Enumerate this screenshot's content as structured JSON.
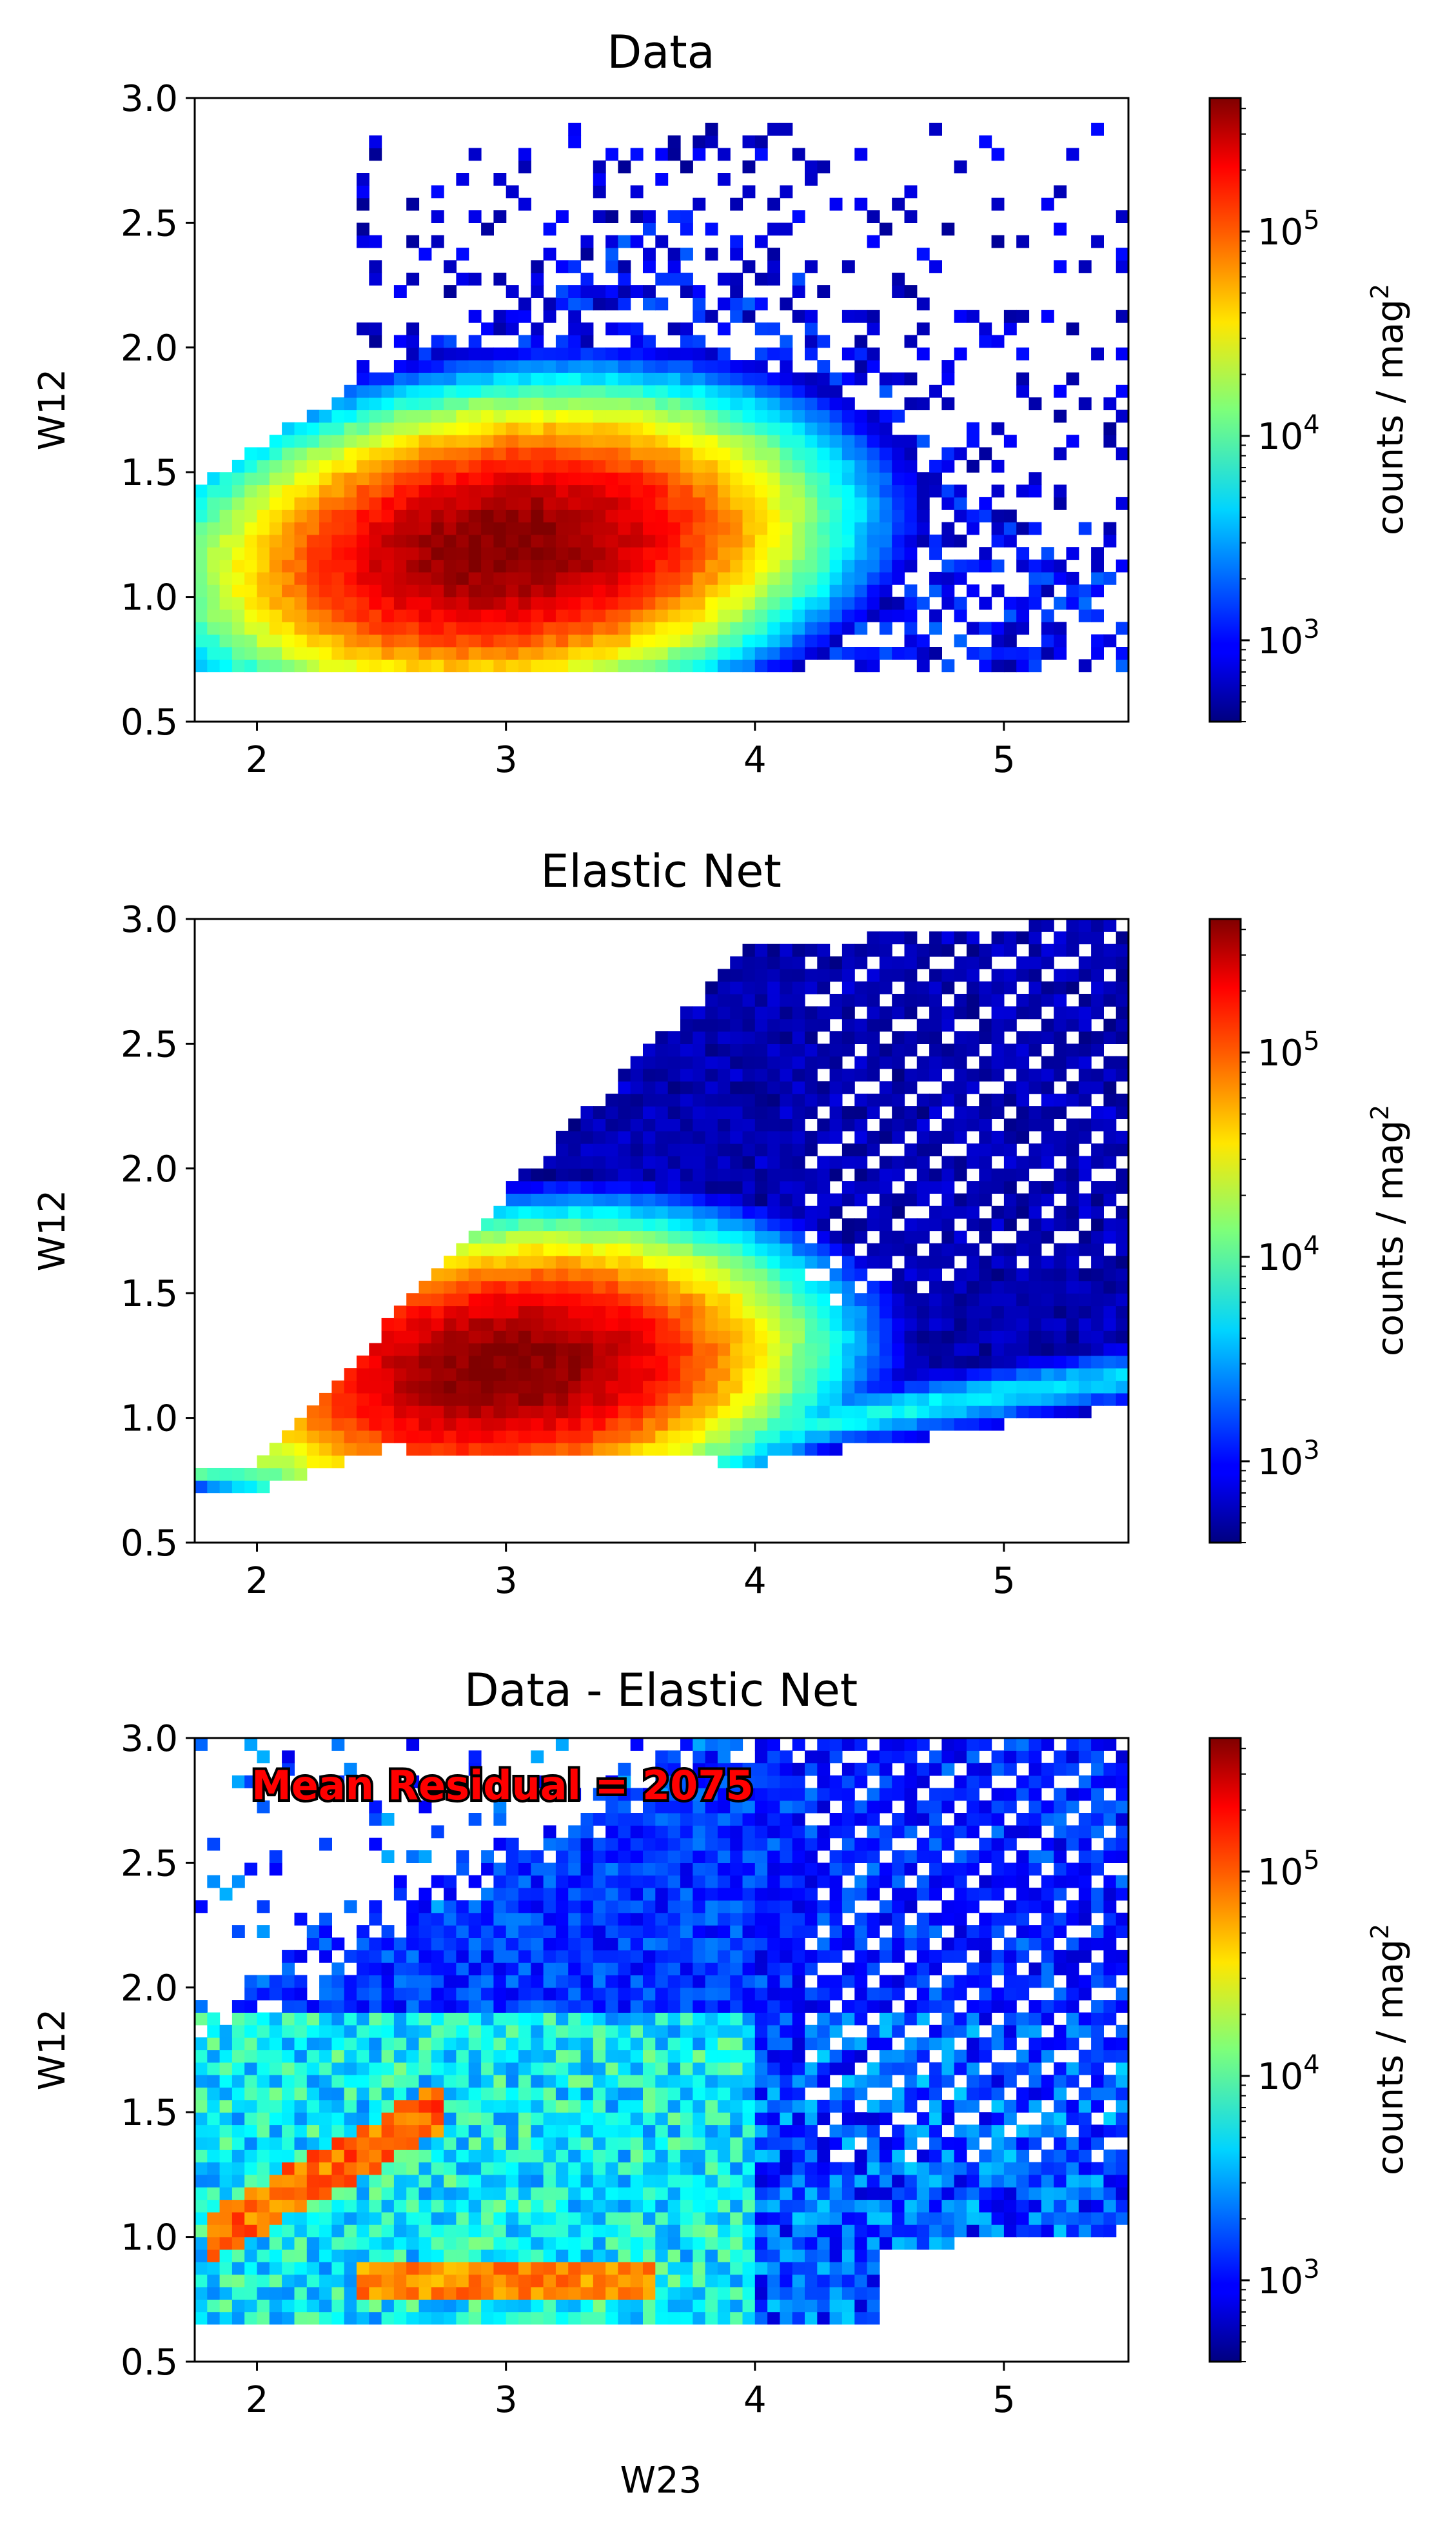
{
  "chart_data": [
    {
      "type": "heatmap",
      "title": "Data",
      "xlabel": "",
      "ylabel": "W12",
      "xlim": [
        1.75,
        5.5
      ],
      "ylim": [
        0.5,
        3.0
      ],
      "xticks": [
        "2",
        "3",
        "4",
        "5"
      ],
      "yticks": [
        "0.5",
        "1.0",
        "1.5",
        "2.0",
        "2.5",
        "3.0"
      ],
      "colorbar": {
        "label": "counts / mag",
        "label_superscript": "2",
        "scale": "log",
        "range": [
          400,
          450000
        ],
        "ticks": [
          "10",
          "10",
          "10"
        ],
        "tick_exponents": [
          "3",
          "4",
          "5"
        ],
        "colormap": "jet"
      },
      "annotation": "",
      "density": {
        "peak": [
          3.0,
          1.2
        ],
        "peak_value": 420000,
        "lower_edge_w12": 0.68,
        "upper_edge": [
          [
            1.75,
            1.45
          ],
          [
            3.0,
            2.2
          ],
          [
            3.8,
            2.6
          ],
          [
            4.5,
            2.0
          ],
          [
            5.0,
            1.3
          ]
        ],
        "scatter_tail": true
      }
    },
    {
      "type": "heatmap",
      "title": "Elastic Net",
      "xlabel": "",
      "ylabel": "W12",
      "xlim": [
        1.75,
        5.5
      ],
      "ylim": [
        0.5,
        3.0
      ],
      "xticks": [
        "2",
        "3",
        "4",
        "5"
      ],
      "yticks": [
        "0.5",
        "1.0",
        "1.5",
        "2.0",
        "2.5",
        "3.0"
      ],
      "colorbar": {
        "label": "counts / mag",
        "label_superscript": "2",
        "scale": "log",
        "range": [
          400,
          450000
        ],
        "ticks": [
          "10",
          "10",
          "10"
        ],
        "tick_exponents": [
          "3",
          "4",
          "5"
        ],
        "colormap": "jet"
      },
      "annotation": "",
      "density": {
        "peak": [
          3.0,
          1.2
        ],
        "peak_value": 400000,
        "lower_boundary": [
          [
            2.0,
            0.7
          ],
          [
            2.5,
            0.88
          ],
          [
            4.0,
            0.82
          ],
          [
            5.5,
            1.05
          ]
        ],
        "upper_boundary": [
          [
            2.0,
            0.8
          ],
          [
            3.0,
            1.9
          ],
          [
            4.0,
            2.9
          ],
          [
            5.5,
            3.0
          ]
        ],
        "stripes": true
      }
    },
    {
      "type": "heatmap",
      "title": "Data - Elastic Net",
      "xlabel": "W23",
      "ylabel": "W12",
      "xlim": [
        1.75,
        5.5
      ],
      "ylim": [
        0.5,
        3.0
      ],
      "xticks": [
        "2",
        "3",
        "4",
        "5"
      ],
      "yticks": [
        "0.5",
        "1.0",
        "1.5",
        "2.0",
        "2.5",
        "3.0"
      ],
      "colorbar": {
        "label": "counts / mag",
        "label_superscript": "2",
        "scale": "log",
        "range": [
          400,
          450000
        ],
        "ticks": [
          "10",
          "10",
          "10"
        ],
        "tick_exponents": [
          "3",
          "4",
          "5"
        ],
        "colormap": "jet"
      },
      "annotation": "Mean Residual = 2075",
      "density": {
        "ridges": [
          [
            [
              1.9,
              1.05
            ],
            [
              2.7,
              1.5
            ]
          ],
          [
            [
              2.5,
              0.8
            ],
            [
              3.5,
              0.85
            ]
          ]
        ],
        "noisy": true
      }
    }
  ]
}
